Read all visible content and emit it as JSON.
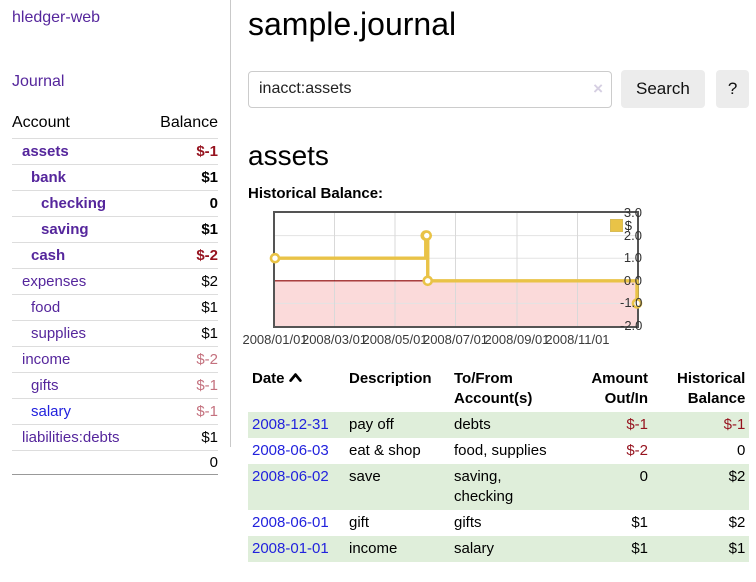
{
  "app": {
    "title": "hledger-web"
  },
  "sidebar": {
    "journal_link": "Journal",
    "account_header": "Account",
    "balance_header": "Balance",
    "accounts": [
      {
        "name": "assets",
        "balance": "$-1"
      },
      {
        "name": "bank",
        "balance": "$1"
      },
      {
        "name": "checking",
        "balance": "0"
      },
      {
        "name": "saving",
        "balance": "$1"
      },
      {
        "name": "cash",
        "balance": "$-2"
      },
      {
        "name": "expenses",
        "balance": "$2"
      },
      {
        "name": "food",
        "balance": "$1"
      },
      {
        "name": "supplies",
        "balance": "$1"
      },
      {
        "name": "income",
        "balance": "$-2"
      },
      {
        "name": "gifts",
        "balance": "$-1"
      },
      {
        "name": "salary",
        "balance": "$-1"
      },
      {
        "name": "liabilities:debts",
        "balance": "$1"
      }
    ],
    "total": "0"
  },
  "main": {
    "title": "sample.journal",
    "search": {
      "value": "inacct:assets",
      "clear_icon": "×",
      "button_label": "Search",
      "help_label": "?"
    },
    "account_heading": "assets",
    "chart_heading": "Historical Balance:"
  },
  "chart_data": {
    "type": "line",
    "step": true,
    "title": "Historical Balance",
    "series": [
      {
        "name": "$",
        "color": "#e9c347",
        "points": [
          [
            "2008-01-01",
            1
          ],
          [
            "2008-06-01",
            2
          ],
          [
            "2008-06-02",
            2
          ],
          [
            "2008-06-03",
            0
          ],
          [
            "2008-12-31",
            -1
          ]
        ]
      }
    ],
    "x_range": [
      "2008-01-01",
      "2008-12-31"
    ],
    "ylim": [
      -2,
      3
    ],
    "x_ticks": [
      {
        "pos": "2008-01-01",
        "label": "2008/01/01"
      },
      {
        "pos": "2008-03-01",
        "label": "2008/03/01"
      },
      {
        "pos": "2008-05-01",
        "label": "2008/05/01"
      },
      {
        "pos": "2008-07-01",
        "label": "2008/07/01"
      },
      {
        "pos": "2008-09-01",
        "label": "2008/09/01"
      },
      {
        "pos": "2008-11-01",
        "label": "2008/11/01"
      }
    ],
    "y_ticks": [
      {
        "v": 3,
        "label": "3.0"
      },
      {
        "v": 2,
        "label": "2.0"
      },
      {
        "v": 1,
        "label": "1.0"
      },
      {
        "v": 0,
        "label": "0.0"
      },
      {
        "v": -1,
        "label": "-1.0"
      },
      {
        "v": -2,
        "label": "-2.0"
      }
    ],
    "grid": true,
    "negative_fill": "#fbdada",
    "zero_line_color": "#8b0000",
    "legend": {
      "label": "$",
      "position": "top-right"
    }
  },
  "register": {
    "headers": {
      "date": "Date",
      "description": "Description",
      "accounts": "To/From Account(s)",
      "amount": "Amount Out/In",
      "balance": "Historical Balance"
    },
    "rows": [
      {
        "date": "2008-12-31",
        "description": "pay off",
        "accounts": "debts",
        "amount": "$-1",
        "balance": "$-1"
      },
      {
        "date": "2008-06-03",
        "description": "eat & shop",
        "accounts": "food, supplies",
        "amount": "$-2",
        "balance": "0"
      },
      {
        "date": "2008-06-02",
        "description": "save",
        "accounts": "saving,\nchecking",
        "amount": "0",
        "balance": "$2"
      },
      {
        "date": "2008-06-01",
        "description": "gift",
        "accounts": "gifts",
        "amount": "$1",
        "balance": "$2"
      },
      {
        "date": "2008-01-01",
        "description": "income",
        "accounts": "salary",
        "amount": "$1",
        "balance": "$1"
      }
    ]
  }
}
